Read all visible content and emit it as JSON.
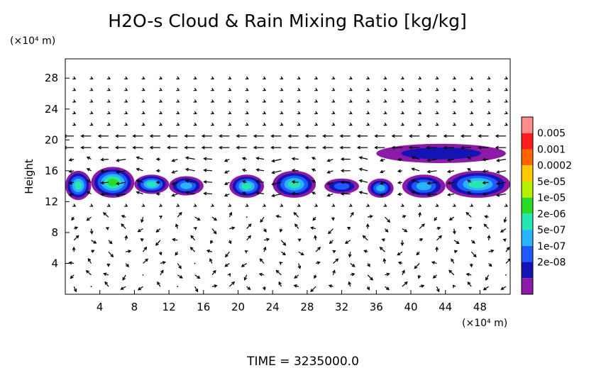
{
  "chart_data": {
    "type": "heatmap",
    "title": "H2O-s Cloud & Rain Mixing Ratio [kg/kg]",
    "xlabel": "",
    "ylabel": "Height",
    "x_unit": "(×10⁴ m)",
    "y_unit": "(×10⁴ m)",
    "xlim": [
      0,
      51.5
    ],
    "ylim": [
      0,
      30.5
    ],
    "x_ticks": [
      "4",
      "8",
      "12",
      "16",
      "20",
      "24",
      "28",
      "32",
      "36",
      "40",
      "44",
      "48"
    ],
    "y_ticks": [
      "4",
      "8",
      "12",
      "16",
      "20",
      "24",
      "28"
    ],
    "colorbar": {
      "labels": [
        "0.005",
        "0.001",
        "0.0002",
        "5e-05",
        "1e-05",
        "2e-06",
        "5e-07",
        "1e-07",
        "2e-08"
      ],
      "colors": [
        "#8c1aa6",
        "#1414b4",
        "#1e5aff",
        "#28b4ff",
        "#28e6b4",
        "#28dc28",
        "#b4f000",
        "#ffc800",
        "#ff6400",
        "#ff1e1e",
        "#ff8c8c"
      ]
    },
    "footer": "TIME  =  3235000.0",
    "cloud_regions": [
      {
        "x0": 0,
        "x1": 3,
        "y0": 12.2,
        "y1": 16,
        "level": 4
      },
      {
        "x0": 3,
        "x1": 8,
        "y0": 12.5,
        "y1": 16.5,
        "level": 5
      },
      {
        "x0": 8,
        "x1": 12,
        "y0": 13,
        "y1": 15.5,
        "level": 4
      },
      {
        "x0": 12,
        "x1": 16,
        "y0": 12.8,
        "y1": 15.3,
        "level": 3
      },
      {
        "x0": 19,
        "x1": 23,
        "y0": 12.5,
        "y1": 15.5,
        "level": 4
      },
      {
        "x0": 24,
        "x1": 29,
        "y0": 12.5,
        "y1": 16,
        "level": 4
      },
      {
        "x0": 30,
        "x1": 34,
        "y0": 13,
        "y1": 15,
        "level": 2
      },
      {
        "x0": 35,
        "x1": 38,
        "y0": 12.5,
        "y1": 15,
        "level": 3
      },
      {
        "x0": 39,
        "x1": 44,
        "y0": 12.5,
        "y1": 15.5,
        "level": 3
      },
      {
        "x0": 44,
        "x1": 51.5,
        "y0": 12.5,
        "y1": 16,
        "level": 4
      },
      {
        "x0": 36,
        "x1": 51,
        "y0": 17,
        "y1": 19.5,
        "level": 1
      }
    ]
  }
}
